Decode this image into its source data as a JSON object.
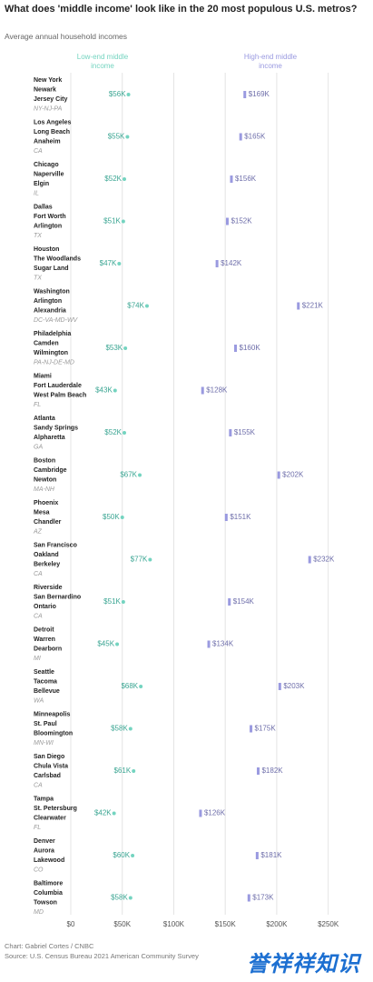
{
  "chart_data": {
    "type": "dumbbell",
    "title": "What does 'middle income' look like in the 20 most populous U.S. metros?",
    "subtitle": "Average annual household incomes",
    "categories": [
      [
        "New York",
        "Newark",
        "Jersey City"
      ],
      [
        "Los Angeles",
        "Long Beach",
        "Anaheim"
      ],
      [
        "Chicago",
        "Naperville",
        "Elgin"
      ],
      [
        "Dallas",
        "Fort Worth",
        "Arlington"
      ],
      [
        "Houston",
        "The Woodlands",
        "Sugar Land"
      ],
      [
        "Washington",
        "Arlington",
        "Alexandria"
      ],
      [
        "Philadelphia",
        "Camden",
        "Wilmington"
      ],
      [
        "Miami",
        "Fort Lauderdale",
        "West Palm Beach"
      ],
      [
        "Atlanta",
        "Sandy Springs",
        "Alpharetta"
      ],
      [
        "Boston",
        "Cambridge",
        "Newton"
      ],
      [
        "Phoenix",
        "Mesa",
        "Chandler"
      ],
      [
        "San Francisco",
        "Oakland",
        "Berkeley"
      ],
      [
        "Riverside",
        "San Bernardino",
        "Ontario"
      ],
      [
        "Detroit",
        "Warren",
        "Dearborn"
      ],
      [
        "Seattle",
        "Tacoma",
        "Bellevue"
      ],
      [
        "Minneapolis",
        "St. Paul",
        "Bloomington"
      ],
      [
        "San Diego",
        "Chula Vista",
        "Carlsbad"
      ],
      [
        "Tampa",
        "St. Petersburg",
        "Clearwater"
      ],
      [
        "Denver",
        "Aurora",
        "Lakewood"
      ],
      [
        "Baltimore",
        "Columbia",
        "Towson"
      ]
    ],
    "regions": [
      "NY-NJ-PA",
      "CA",
      "IL",
      "TX",
      "TX",
      "DC-VA-MD-WV",
      "PA-NJ-DE-MD",
      "FL",
      "GA",
      "MA-NH",
      "AZ",
      "CA",
      "CA",
      "MI",
      "WA",
      "MN-WI",
      "CA",
      "FL",
      "CO",
      "MD"
    ],
    "series": [
      {
        "name": "Low-end middle income",
        "color": "#74d4c0",
        "values": [
          56000,
          55000,
          52000,
          51000,
          47000,
          74000,
          53000,
          43000,
          52000,
          67000,
          50000,
          77000,
          51000,
          45000,
          68000,
          58000,
          61000,
          42000,
          60000,
          58000
        ],
        "value_labels": [
          "$56K",
          "$55K",
          "$52K",
          "$51K",
          "$47K",
          "$74K",
          "$53K",
          "$43K",
          "$52K",
          "$67K",
          "$50K",
          "$77K",
          "$51K",
          "$45K",
          "$68K",
          "$58K",
          "$61K",
          "$42K",
          "$60K",
          "$58K"
        ]
      },
      {
        "name": "High-end middle income",
        "color": "#9a9ae0",
        "values": [
          169000,
          165000,
          156000,
          152000,
          142000,
          221000,
          160000,
          128000,
          155000,
          202000,
          151000,
          232000,
          154000,
          134000,
          203000,
          175000,
          182000,
          126000,
          181000,
          173000
        ],
        "value_labels": [
          "$169K",
          "$165K",
          "$156K",
          "$152K",
          "$142K",
          "$221K",
          "$160K",
          "$128K",
          "$155K",
          "$202K",
          "$151K",
          "$232K",
          "$154K",
          "$134K",
          "$203K",
          "$175K",
          "$182K",
          "$126K",
          "$181K",
          "$173K"
        ]
      }
    ],
    "xlim": [
      0,
      275000
    ],
    "xticks": [
      {
        "value": 0,
        "label": "$0"
      },
      {
        "value": 50000,
        "label": "$50K"
      },
      {
        "value": 100000,
        "label": "$100K"
      },
      {
        "value": 150000,
        "label": "$150K"
      },
      {
        "value": 200000,
        "label": "$200K"
      },
      {
        "value": 250000,
        "label": "$250K"
      }
    ],
    "grid": true,
    "credit": "Chart: Gabriel Cortes / CNBC",
    "source": "Source: U.S. Census Bureau 2021 American Community Survey"
  },
  "watermark": "誉祥祥知识"
}
